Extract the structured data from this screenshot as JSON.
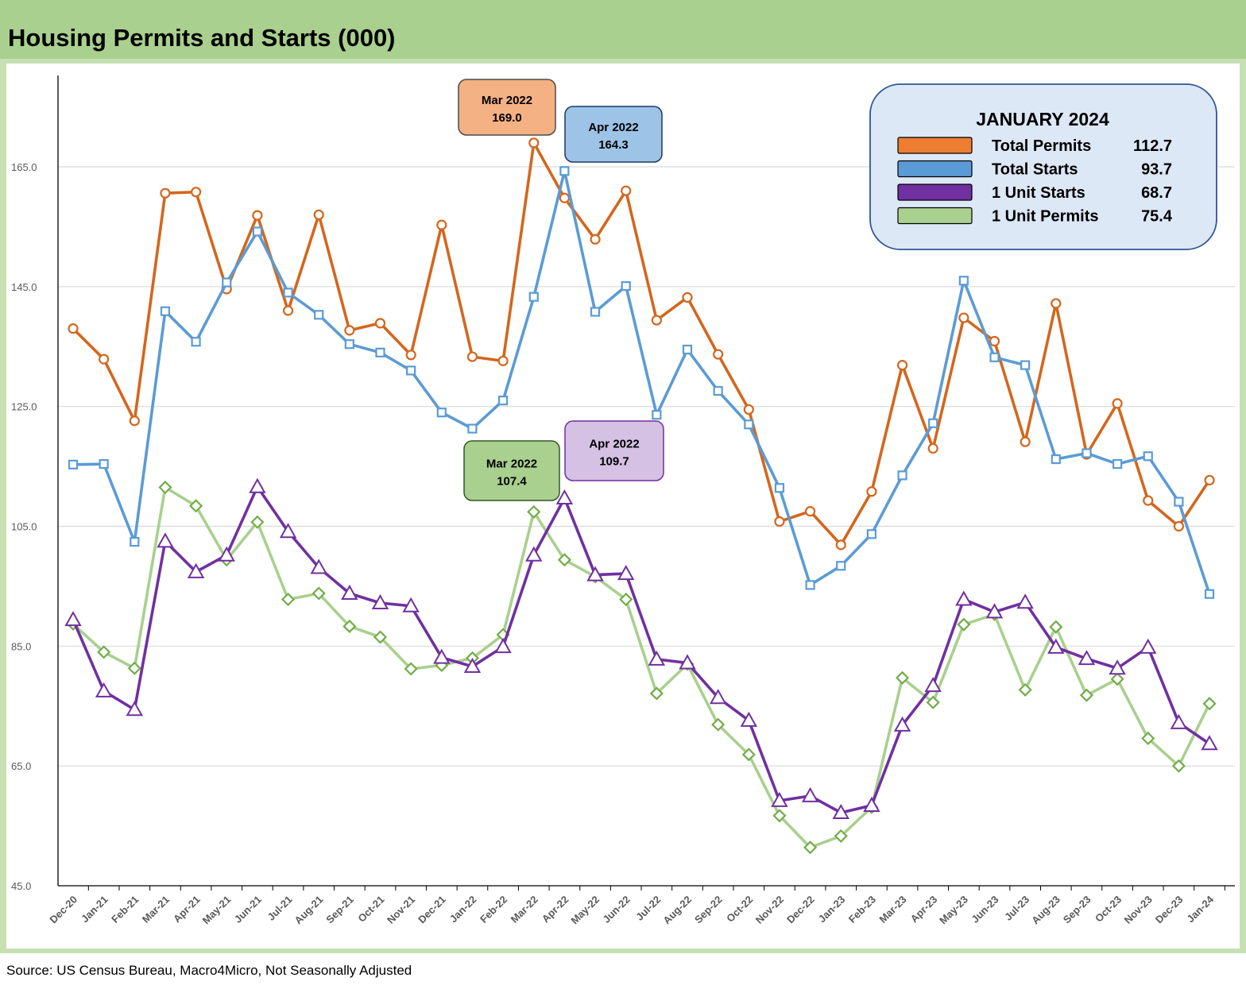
{
  "title": "Housing Permits and Starts (000)",
  "source": "Source: US Census Bureau, Macro4Micro, Not Seasonally Adjusted",
  "chart_data": {
    "type": "line",
    "title": "Housing Permits and Starts (000)",
    "xlabel": "",
    "ylabel": "",
    "ylim": [
      45.0,
      185.0
    ],
    "yticks": [
      "45.0",
      "65.0",
      "85.0",
      "105.0",
      "125.0",
      "145.0",
      "165.0"
    ],
    "grid": true,
    "categories": [
      "Dec-20",
      "Jan-21",
      "Feb-21",
      "Mar-21",
      "Apr-21",
      "May-21",
      "Jun-21",
      "Jul-21",
      "Aug-21",
      "Sep-21",
      "Oct-21",
      "Nov-21",
      "Dec-21",
      "Jan-22",
      "Feb-22",
      "Mar-22",
      "Apr-22",
      "May-22",
      "Jun-22",
      "Jul-22",
      "Aug-22",
      "Sep-22",
      "Oct-22",
      "Nov-22",
      "Dec-22",
      "Jan-23",
      "Feb-23",
      "Mar-23",
      "Apr-23",
      "May-23",
      "Jun-23",
      "Jul-23",
      "Aug-23",
      "Sep-23",
      "Oct-23",
      "Nov-23",
      "Dec-23",
      "Jan-24"
    ],
    "series": [
      {
        "name": "Total Permits",
        "color": "#d4661d",
        "marker": "circle",
        "values": [
          138.0,
          132.9,
          122.6,
          160.6,
          160.8,
          144.6,
          156.9,
          141.0,
          157.0,
          137.7,
          138.9,
          133.6,
          155.3,
          133.3,
          132.6,
          169.0,
          159.8,
          152.9,
          161.0,
          139.4,
          143.2,
          133.7,
          124.5,
          105.8,
          107.5,
          101.9,
          110.8,
          131.9,
          118.0,
          139.8,
          135.9,
          119.1,
          142.2,
          117.0,
          125.5,
          109.3,
          105.0,
          112.7
        ]
      },
      {
        "name": "Total Starts",
        "color": "#5b9bd5",
        "marker": "square",
        "values": [
          115.3,
          115.4,
          102.4,
          140.9,
          135.8,
          145.7,
          154.2,
          144.0,
          140.3,
          135.4,
          134.0,
          131.0,
          124.0,
          121.3,
          126.0,
          143.3,
          164.3,
          140.8,
          145.1,
          123.6,
          134.5,
          127.6,
          122.0,
          111.4,
          95.2,
          98.4,
          103.7,
          113.5,
          122.2,
          146.0,
          133.2,
          131.9,
          116.2,
          117.2,
          115.4,
          116.7,
          109.1,
          93.7
        ]
      },
      {
        "name": "1 Unit Starts",
        "color": "#7030a0",
        "marker": "triangle",
        "values": [
          89.4,
          77.5,
          74.4,
          102.5,
          97.4,
          100.2,
          111.6,
          104.1,
          98.1,
          93.8,
          92.2,
          91.7,
          83.1,
          81.6,
          84.9,
          100.2,
          109.7,
          96.9,
          97.1,
          82.8,
          82.2,
          76.4,
          72.6,
          59.2,
          60.0,
          57.2,
          58.4,
          71.8,
          78.4,
          92.8,
          90.7,
          92.3,
          84.8,
          82.9,
          81.3,
          84.8,
          72.2,
          68.7
        ]
      },
      {
        "name": "1 Unit Permits",
        "color": "#a9d08e",
        "markerColor": "#70ad47",
        "marker": "diamond",
        "values": [
          88.7,
          84.0,
          81.3,
          111.5,
          108.4,
          99.4,
          105.7,
          92.8,
          93.8,
          88.3,
          86.5,
          81.2,
          81.8,
          83.0,
          86.9,
          107.4,
          99.4,
          96.6,
          92.8,
          77.1,
          82.0,
          71.9,
          66.9,
          56.7,
          51.4,
          53.3,
          58.1,
          79.7,
          75.6,
          88.6,
          90.3,
          77.7,
          88.2,
          76.8,
          79.5,
          69.6,
          65.0,
          75.4
        ]
      }
    ],
    "annotations": [
      {
        "label": "Mar 2022",
        "value": "169.0",
        "fill": "#f4b183",
        "stroke": "#4a4a4a"
      },
      {
        "label": "Apr 2022",
        "value": "164.3",
        "fill": "#9dc3e6",
        "stroke": "#1f3864"
      },
      {
        "label": "Mar 2022",
        "value": "107.4",
        "fill": "#a9d08e",
        "stroke": "#375623"
      },
      {
        "label": "Apr 2022",
        "value": "109.7",
        "fill": "#d5c1e3",
        "stroke": "#7030a0"
      }
    ],
    "legend": {
      "placement": "top-right",
      "heading": "JANUARY 2024",
      "entries": [
        {
          "name": "Total Permits",
          "value": "112.7",
          "color": "#ed7d31"
        },
        {
          "name": "Total Starts",
          "value": "93.7",
          "color": "#5b9bd5"
        },
        {
          "name": "1 Unit Starts",
          "value": "68.7",
          "color": "#7030a0"
        },
        {
          "name": "1 Unit Permits",
          "value": "75.4",
          "color": "#a9d08e"
        }
      ]
    }
  }
}
